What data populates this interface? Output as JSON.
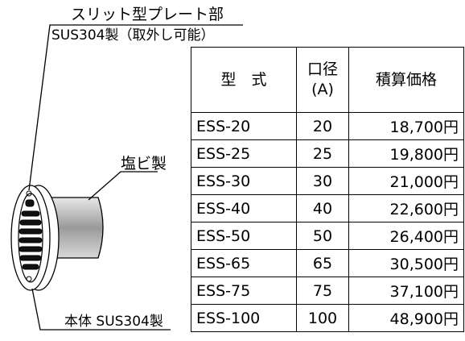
{
  "labels": {
    "plate": "スリット型プレート部",
    "plate_material": "SUS304製（取外し可能）",
    "pipe": "塩ビ製",
    "body": "本体 SUS304製"
  },
  "table": {
    "header": [
      "型　式",
      "口径\n(A)",
      "積算価格"
    ],
    "rows": [
      [
        "ESS-20",
        "20",
        "18,700円"
      ],
      [
        "ESS-25",
        "25",
        "19,800円"
      ],
      [
        "ESS-30",
        "30",
        "21,000円"
      ],
      [
        "ESS-40",
        "40",
        "22,600円"
      ],
      [
        "ESS-50",
        "50",
        "26,400円"
      ],
      [
        "ESS-65",
        "65",
        "30,500円"
      ],
      [
        "ESS-75",
        "75",
        "37,100円"
      ],
      [
        "ESS-100",
        "100",
        "48,900円"
      ]
    ]
  }
}
